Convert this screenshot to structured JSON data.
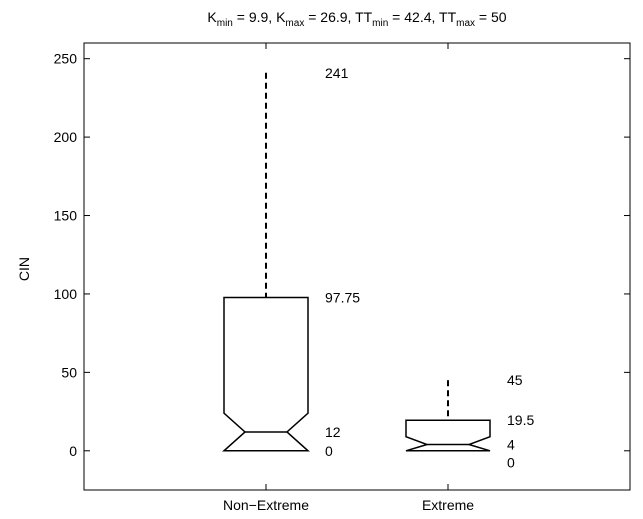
{
  "chart_data": {
    "type": "boxplot",
    "title_parts": [
      {
        "base": "K",
        "sub": "min",
        "rest": " = 9.9, "
      },
      {
        "base": "K",
        "sub": "max",
        "rest": " = 26.9, "
      },
      {
        "base": "TT",
        "sub": "min",
        "rest": " = 42.4, "
      },
      {
        "base": "TT",
        "sub": "max",
        "rest": " = 50"
      }
    ],
    "ylabel": "CIN",
    "xlabel": "",
    "categories": [
      "Non−Extreme",
      "Extreme"
    ],
    "ylim": [
      -25,
      260
    ],
    "yticks": [
      0,
      50,
      100,
      150,
      200,
      250
    ],
    "boxes": [
      {
        "name": "Non−Extreme",
        "min": 0,
        "q1": 0,
        "median": 12,
        "q3": 97.75,
        "max": 241,
        "notch_low": 0,
        "notch_high": 24,
        "labels": {
          "max": "241",
          "q3": "97.75",
          "median": "12",
          "min": "0"
        }
      },
      {
        "name": "Extreme",
        "min": 0,
        "q1": 0,
        "median": 4,
        "q3": 19.5,
        "max": 45,
        "notch_low": 0,
        "notch_high": 9,
        "labels": {
          "max": "45",
          "q3": "19.5",
          "median": "4",
          "min": "0"
        }
      }
    ],
    "grid": false
  }
}
